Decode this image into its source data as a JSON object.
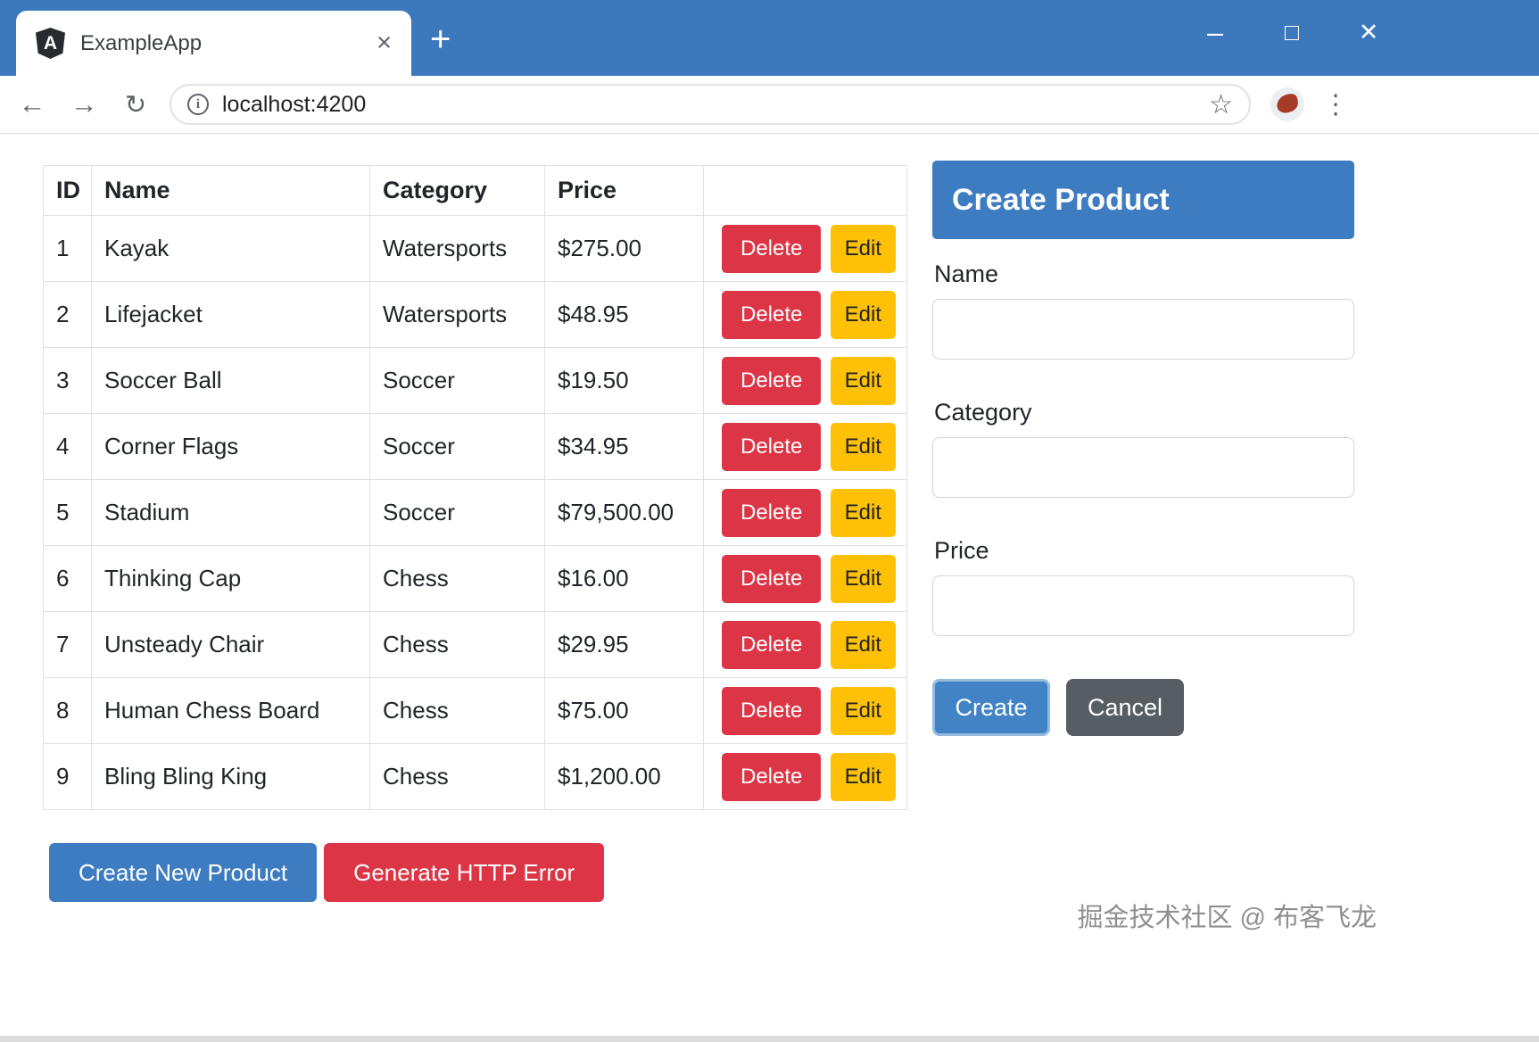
{
  "browser": {
    "tab_title": "ExampleApp",
    "tab_close": "×",
    "new_tab": "+",
    "url": "localhost:4200",
    "window_controls": {
      "minimize": "–",
      "maximize": "□",
      "close": "✕"
    },
    "nav": {
      "back": "←",
      "forward": "→",
      "refresh": "↻",
      "star": "☆",
      "menu": "⋮",
      "info": "i"
    },
    "favicon_letter": "A"
  },
  "colors": {
    "titlebar_blue": "#3c78bc",
    "primary_blue": "#3e7cc1",
    "danger_red": "#dc3545",
    "warning_yellow": "#ffc107",
    "secondary_dark": "#565e64"
  },
  "table": {
    "headers": {
      "id": "ID",
      "name": "Name",
      "category": "Category",
      "price": "Price",
      "actions": ""
    },
    "delete_label": "Delete",
    "edit_label": "Edit",
    "rows": [
      {
        "id": "1",
        "name": "Kayak",
        "category": "Watersports",
        "price": "$275.00"
      },
      {
        "id": "2",
        "name": "Lifejacket",
        "category": "Watersports",
        "price": "$48.95"
      },
      {
        "id": "3",
        "name": "Soccer Ball",
        "category": "Soccer",
        "price": "$19.50"
      },
      {
        "id": "4",
        "name": "Corner Flags",
        "category": "Soccer",
        "price": "$34.95"
      },
      {
        "id": "5",
        "name": "Stadium",
        "category": "Soccer",
        "price": "$79,500.00"
      },
      {
        "id": "6",
        "name": "Thinking Cap",
        "category": "Chess",
        "price": "$16.00"
      },
      {
        "id": "7",
        "name": "Unsteady Chair",
        "category": "Chess",
        "price": "$29.95"
      },
      {
        "id": "8",
        "name": "Human Chess Board",
        "category": "Chess",
        "price": "$75.00"
      },
      {
        "id": "9",
        "name": "Bling Bling King",
        "category": "Chess",
        "price": "$1,200.00"
      }
    ]
  },
  "actions": {
    "create_new_product": "Create New Product",
    "generate_http_error": "Generate HTTP Error"
  },
  "form": {
    "title": "Create Product",
    "name_label": "Name",
    "category_label": "Category",
    "price_label": "Price",
    "create_label": "Create",
    "cancel_label": "Cancel"
  },
  "watermark": "掘金技术社区 @ 布客飞龙"
}
